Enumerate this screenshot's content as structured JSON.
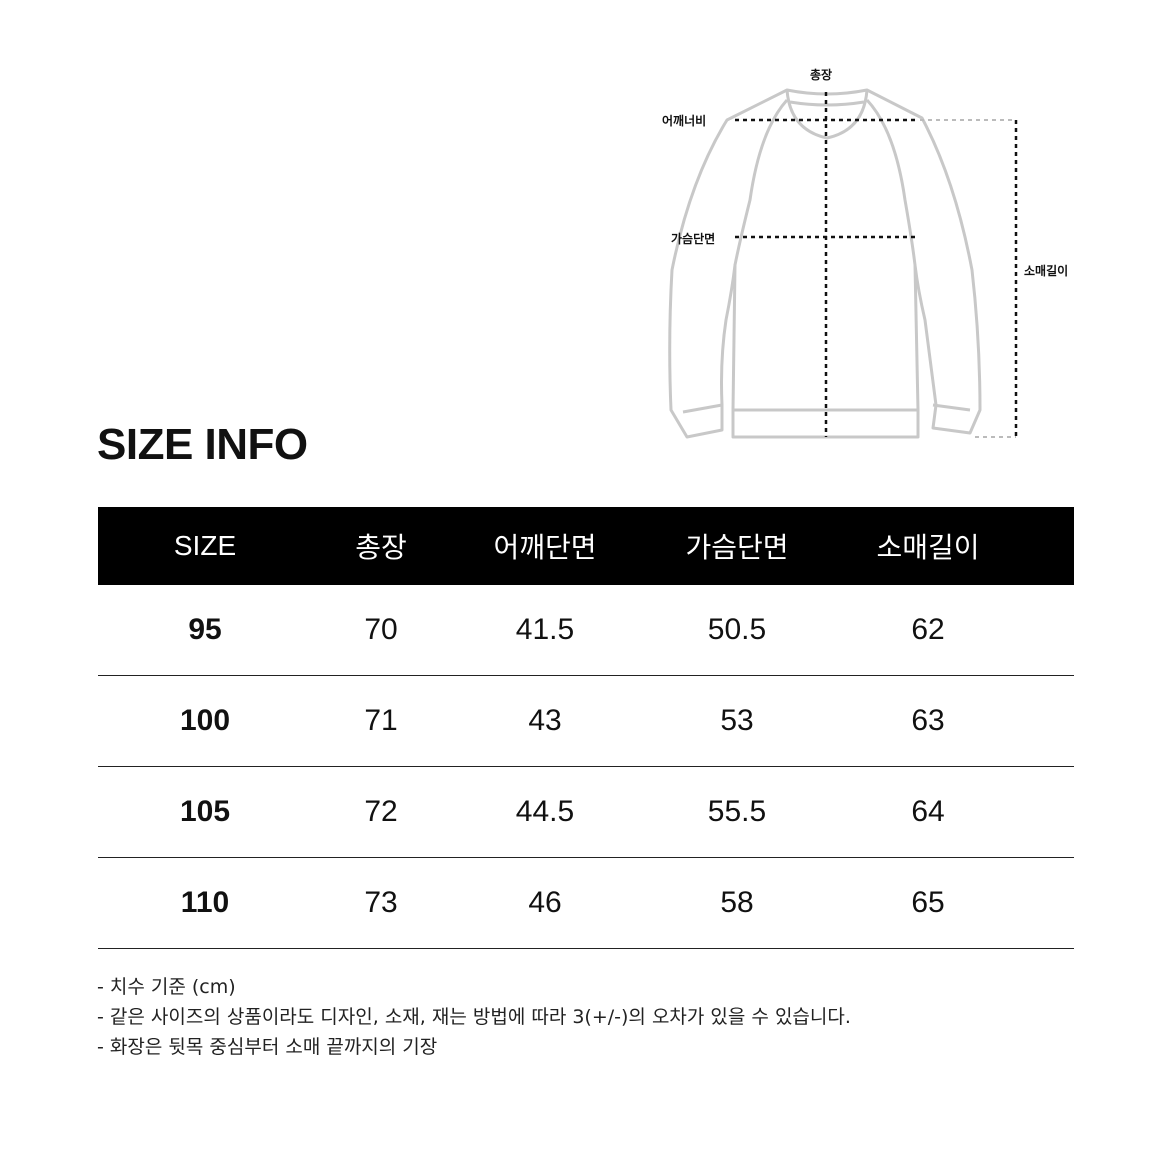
{
  "diagram": {
    "labels": {
      "total_length": "총장",
      "shoulder_width": "어깨너비",
      "chest_width": "가슴단면",
      "sleeve_length": "소매길이"
    }
  },
  "title": "SIZE INFO",
  "table": {
    "headers": [
      "SIZE",
      "총장",
      "어깨단면",
      "가슴단면",
      "소매길이"
    ],
    "rows": [
      [
        "95",
        "70",
        "41.5",
        "50.5",
        "62"
      ],
      [
        "100",
        "71",
        "43",
        "53",
        "63"
      ],
      [
        "105",
        "72",
        "44.5",
        "55.5",
        "64"
      ],
      [
        "110",
        "73",
        "46",
        "58",
        "65"
      ]
    ]
  },
  "notes": [
    "- 치수 기준 (cm)",
    "- 같은 사이즈의 상품이라도 디자인, 소재, 재는 방법에 따라 3(+/-)의 오차가 있을 수 있습니다.",
    "- 화장은 뒷목 중심부터 소매 끝까지의 기장"
  ]
}
